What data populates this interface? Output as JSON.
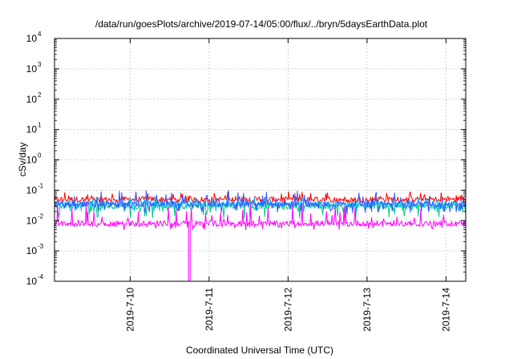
{
  "chart_data": {
    "type": "line",
    "title": "/data/run/goesPlots/archive/2019-07-14/05:00/flux/../bryn/5daysEarthData.plot",
    "xlabel": "Coordinated Universal Time (UTC)",
    "ylabel": "cSv/day",
    "y_scale": "log",
    "ylim": [
      0.0001,
      10000
    ],
    "y_ticks": [
      {
        "base": "10",
        "exp": "-4",
        "value": 0.0001
      },
      {
        "base": "10",
        "exp": "-3",
        "value": 0.001
      },
      {
        "base": "10",
        "exp": "-2",
        "value": 0.01
      },
      {
        "base": "10",
        "exp": "-1",
        "value": 0.1
      },
      {
        "base": "10",
        "exp": "0",
        "value": 1
      },
      {
        "base": "10",
        "exp": "1",
        "value": 10
      },
      {
        "base": "10",
        "exp": "2",
        "value": 100
      },
      {
        "base": "10",
        "exp": "3",
        "value": 1000
      },
      {
        "base": "10",
        "exp": "4",
        "value": 10000
      }
    ],
    "xlim": [
      "2019-07-09 01:00",
      "2019-07-14 06:00"
    ],
    "x_ticks": [
      "2019-7-10",
      "2019-7-11",
      "2019-7-12",
      "2019-7-13",
      "2019-7-14"
    ],
    "x_tick_dates": [
      "2019-07-10",
      "2019-07-11",
      "2019-07-12",
      "2019-07-13",
      "2019-07-14"
    ],
    "grid": true,
    "series": [
      {
        "color": "#ff0000",
        "typical": 0.05,
        "low": 0.035,
        "high": 0.09
      },
      {
        "color": "#00cc88",
        "typical": 0.03,
        "low": 0.012,
        "high": 0.045
      },
      {
        "color": "#00bbff",
        "typical": 0.035,
        "low": 0.02,
        "high": 0.06
      },
      {
        "color": "#3355ff",
        "typical": 0.035,
        "low": 0.018,
        "high": 0.1
      },
      {
        "color": "#ff00ff",
        "typical": 0.008,
        "low": 0.005,
        "high": 0.04,
        "dropout": {
          "date": "2019-07-10 18:00",
          "min": 0.0001
        }
      }
    ]
  }
}
